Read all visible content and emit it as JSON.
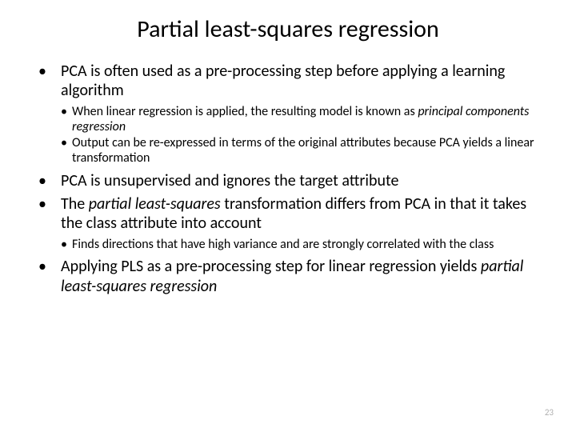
{
  "title": {
    "text": "Partial least-squares regression",
    "fontsize": 30,
    "color": "#000000"
  },
  "body": {
    "main_fontsize": 20,
    "sub_fontsize": 16,
    "color": "#000000"
  },
  "bullets": {
    "b1": "PCA is often used as a pre-processing step before applying a learning algorithm",
    "b1s1_a": "When linear regression is applied, the resulting model is known as ",
    "b1s1_b": "principal components regression",
    "b1s2": "Output can be re-expressed in terms of the original attributes because PCA yields a linear transformation",
    "b2": "PCA is unsupervised and ignores the target attribute",
    "b3_a": "The ",
    "b3_b": "partial least-squares",
    "b3_c": " transformation differs from PCA in that it takes the class attribute into account",
    "b3s1": "Finds directions that have high variance and are strongly correlated with the class",
    "b4_a": "Applying PLS as a pre-processing step for linear regression yields ",
    "b4_b": "partial least-squares regression"
  },
  "pageNumber": {
    "text": "23",
    "fontsize": 11,
    "color": "#b0b0b0"
  },
  "background_color": "#ffffff"
}
